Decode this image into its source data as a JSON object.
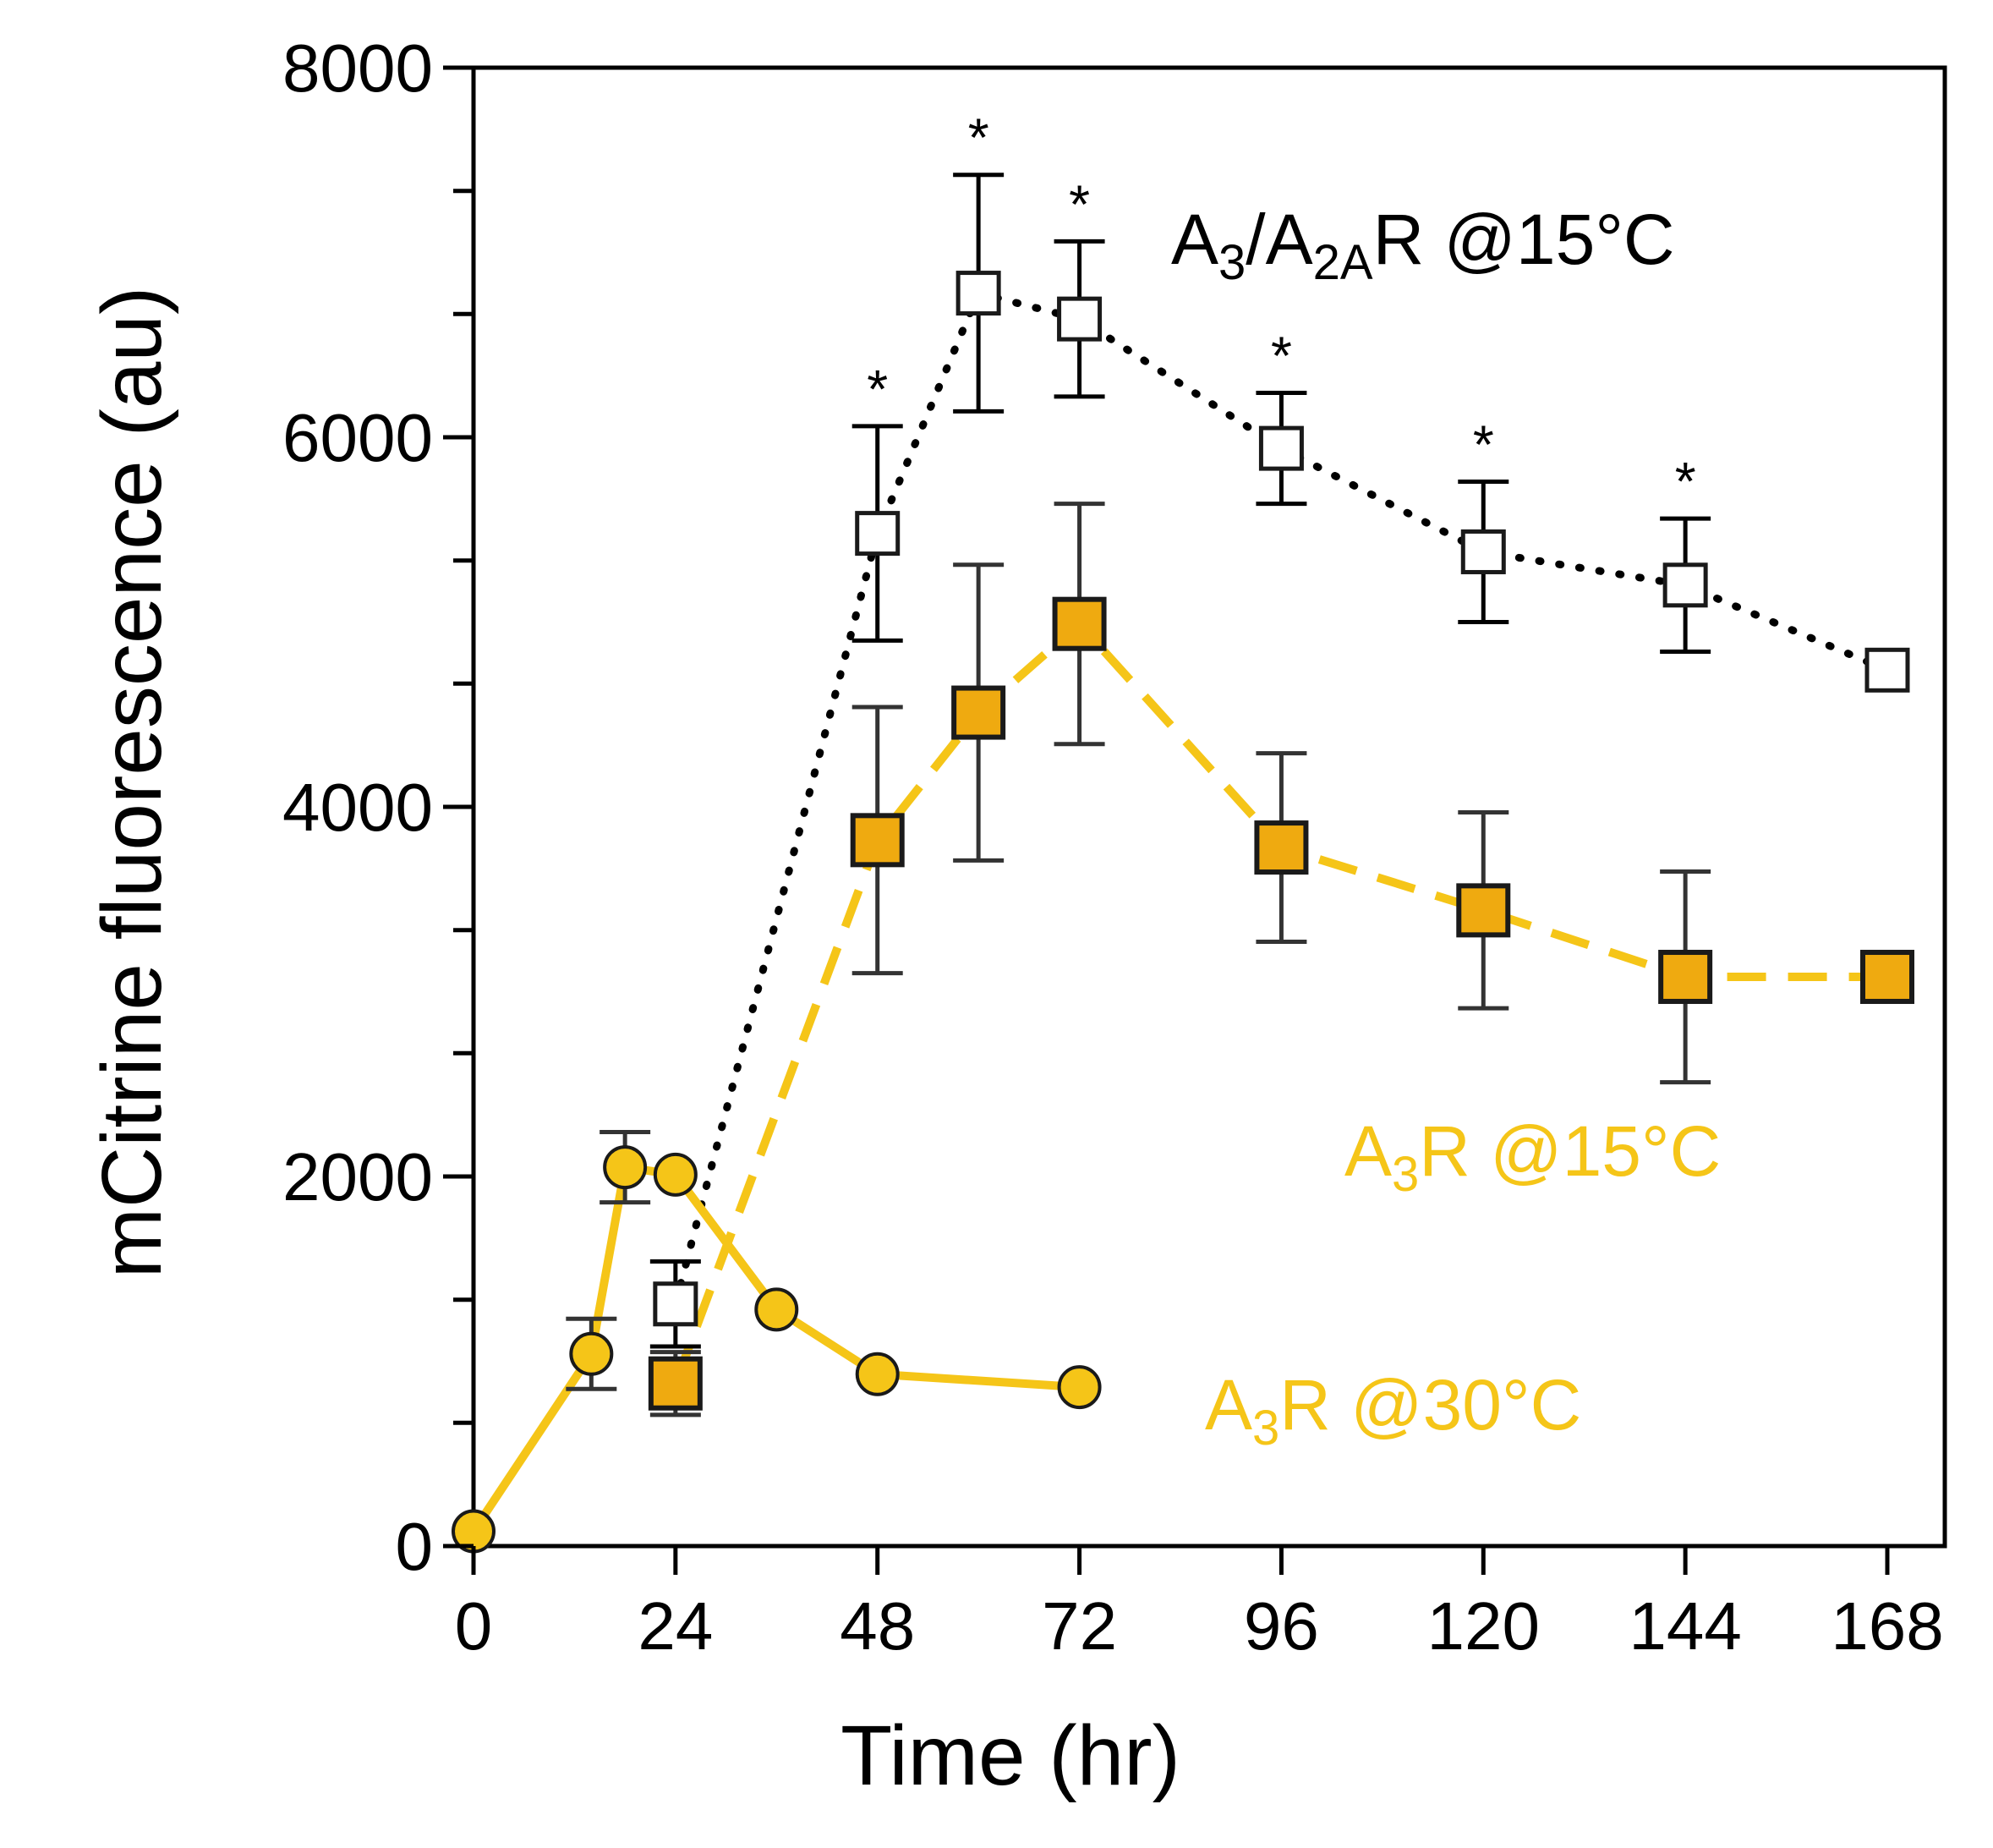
{
  "chart_data": {
    "type": "line",
    "xlabel": "Time (hr)",
    "ylabel": "mCitrine fluorescence (au)",
    "xlim": [
      0,
      176
    ],
    "ylim": [
      0,
      8000
    ],
    "x_ticks": [
      0,
      24,
      48,
      72,
      96,
      120,
      144,
      168
    ],
    "x_tick_labels": [
      "0",
      "24",
      "48",
      "72",
      "96",
      "120",
      "144",
      "168"
    ],
    "y_ticks": [
      0,
      2000,
      4000,
      6000,
      8000
    ],
    "y_tick_labels": [
      "0",
      "2000",
      "4000",
      "6000",
      "8000"
    ],
    "y_minor_ticks": [
      667,
      1333,
      2667,
      3333,
      4667,
      5333,
      6667,
      7333
    ],
    "grid": false,
    "legend": "inline labels",
    "series": [
      {
        "name": "A3/A2AR @15°C",
        "label_parts": [
          {
            "text": "A",
            "sub": false
          },
          {
            "text": "3",
            "sub": true
          },
          {
            "text": "/A",
            "sub": false
          },
          {
            "text": "2A",
            "sub": true
          },
          {
            "text": "R @15°C",
            "sub": false
          }
        ],
        "color": "#000000",
        "fill": "#ffffff",
        "marker": "square",
        "line": "dotted",
        "x": [
          24,
          48,
          60,
          72,
          96,
          120,
          144,
          168
        ],
        "y": [
          1310,
          5480,
          6780,
          6640,
          5940,
          5380,
          5200,
          4740
        ],
        "error": [
          230,
          580,
          640,
          420,
          300,
          380,
          360,
          null
        ],
        "significant": [
          false,
          true,
          true,
          true,
          true,
          true,
          true,
          false
        ]
      },
      {
        "name": "A3R @15°C",
        "label_parts": [
          {
            "text": "A",
            "sub": false
          },
          {
            "text": "3",
            "sub": true
          },
          {
            "text": "R @15°C",
            "sub": false
          }
        ],
        "color": "#f5c518",
        "fill": "#efaa10",
        "marker": "square",
        "line": "dashed",
        "x": [
          24,
          48,
          60,
          72,
          96,
          120,
          144,
          168
        ],
        "y": [
          880,
          3820,
          4510,
          4990,
          3780,
          3440,
          3080,
          3080
        ],
        "error": [
          170,
          720,
          800,
          650,
          510,
          530,
          570,
          null
        ]
      },
      {
        "name": "A3R @30°C",
        "label_parts": [
          {
            "text": "A",
            "sub": false
          },
          {
            "text": "3",
            "sub": true
          },
          {
            "text": "R @30°C",
            "sub": false
          }
        ],
        "color": "#f5c518",
        "fill": "#f5c518",
        "marker": "circle",
        "line": "solid",
        "x": [
          0,
          14,
          18,
          24,
          36,
          48,
          72
        ],
        "y": [
          80,
          1040,
          2050,
          2010,
          1280,
          930,
          860
        ],
        "error": [
          null,
          190,
          190,
          null,
          null,
          null,
          null
        ]
      }
    ],
    "annotations": {
      "significance_marker": "*"
    }
  },
  "colors": {
    "axis": "#000000",
    "a3a2a_line": "#000000",
    "a3r_line": "#f5c518",
    "a3r_15_marker_fill": "#efaa10",
    "a3r_30_marker_fill": "#f5c518",
    "marker_stroke": "#1a1a1a",
    "error_bar_yellow_series": "#333333",
    "label_yellow": "#f5c518",
    "label_black": "#000000"
  }
}
